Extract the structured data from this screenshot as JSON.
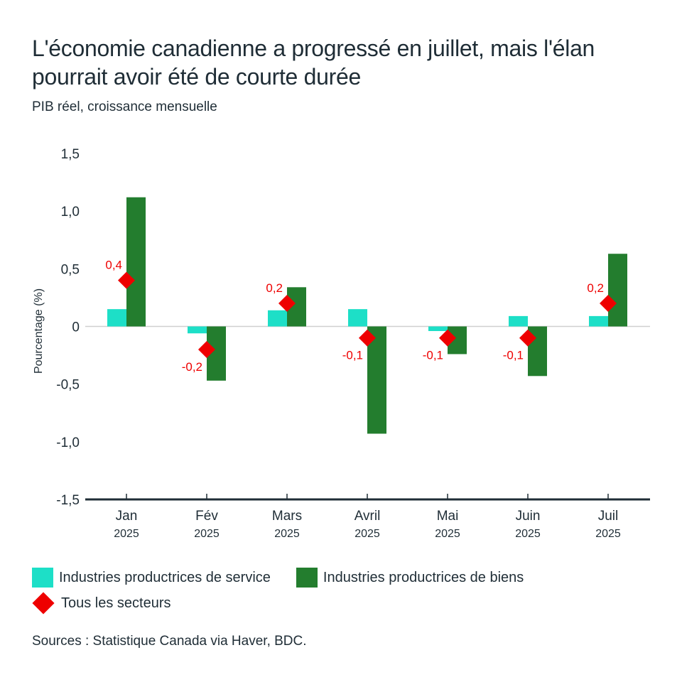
{
  "header": {
    "title": "L'économie canadienne a progressé en juillet, mais l'élan pourrait avoir été de courte durée",
    "subtitle": "PIB réel, croissance mensuelle"
  },
  "source": "Sources : Statistique Canada via Haver, BDC.",
  "colors": {
    "service": "#1ddfc7",
    "goods": "#237d2e",
    "total": "#ee0000",
    "axis": "#1f2d36",
    "zero_line": "#cfcfcf"
  },
  "chart_data": {
    "type": "bar",
    "title": "L'économie canadienne a progressé en juillet, mais l'élan pourrait avoir été de courte durée",
    "subtitle": "PIB réel, croissance mensuelle",
    "xlabel": "",
    "ylabel": "Pourcentage (%)",
    "ylim": [
      -1.5,
      1.5
    ],
    "yticks": [
      1.5,
      1.0,
      0.5,
      0,
      -0.5,
      -1.0,
      -1.5
    ],
    "ytick_labels": [
      "1,5",
      "1,0",
      "0,5",
      "0",
      "-0,5",
      "-1,0",
      "-1,5"
    ],
    "categories": [
      "Jan",
      "Fév",
      "Mars",
      "Avril",
      "Mai",
      "Juin",
      "Juil"
    ],
    "category_years": [
      "2025",
      "2025",
      "2025",
      "2025",
      "2025",
      "2025",
      "2025"
    ],
    "grid": false,
    "legend_position": "bottom",
    "series": [
      {
        "name": "Industries productrices de service",
        "kind": "bar",
        "values": [
          0.15,
          -0.06,
          0.14,
          0.15,
          -0.04,
          0.09,
          0.09
        ]
      },
      {
        "name": "Industries productrices de biens",
        "kind": "bar",
        "values": [
          1.12,
          -0.47,
          0.34,
          -0.93,
          -0.24,
          -0.43,
          0.63
        ]
      },
      {
        "name": "Tous les secteurs",
        "kind": "marker",
        "values": [
          0.4,
          -0.2,
          0.2,
          -0.1,
          -0.1,
          -0.1,
          0.2
        ],
        "labels": [
          "0,4",
          "-0,2",
          "0,2",
          "-0,1",
          "-0,1",
          "-0,1",
          "0,2"
        ]
      }
    ]
  }
}
